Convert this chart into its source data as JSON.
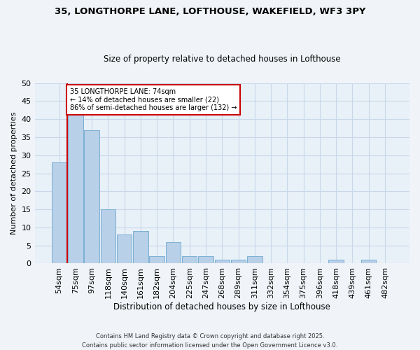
{
  "title1": "35, LONGTHORPE LANE, LOFTHOUSE, WAKEFIELD, WF3 3PY",
  "title2": "Size of property relative to detached houses in Lofthouse",
  "xlabel": "Distribution of detached houses by size in Lofthouse",
  "ylabel": "Number of detached properties",
  "categories": [
    "54sqm",
    "75sqm",
    "97sqm",
    "118sqm",
    "140sqm",
    "161sqm",
    "182sqm",
    "204sqm",
    "225sqm",
    "247sqm",
    "268sqm",
    "289sqm",
    "311sqm",
    "332sqm",
    "354sqm",
    "375sqm",
    "396sqm",
    "418sqm",
    "439sqm",
    "461sqm",
    "482sqm"
  ],
  "values": [
    28,
    42,
    37,
    15,
    8,
    9,
    2,
    6,
    2,
    2,
    1,
    1,
    2,
    0,
    0,
    0,
    0,
    1,
    0,
    1,
    0
  ],
  "bar_color": "#b8d0e8",
  "bar_edge_color": "#7aafd4",
  "grid_color": "#c8d8ea",
  "bg_color": "#e8f0f8",
  "fig_bg_color": "#f0f4f8",
  "vline_color": "#cc0000",
  "annotation_text": "35 LONGTHORPE LANE: 74sqm\n← 14% of detached houses are smaller (22)\n86% of semi-detached houses are larger (132) →",
  "annotation_box_color": "#cc0000",
  "footer": "Contains HM Land Registry data © Crown copyright and database right 2025.\nContains public sector information licensed under the Open Government Licence v3.0.",
  "ylim": [
    0,
    50
  ],
  "yticks": [
    0,
    5,
    10,
    15,
    20,
    25,
    30,
    35,
    40,
    45,
    50
  ]
}
